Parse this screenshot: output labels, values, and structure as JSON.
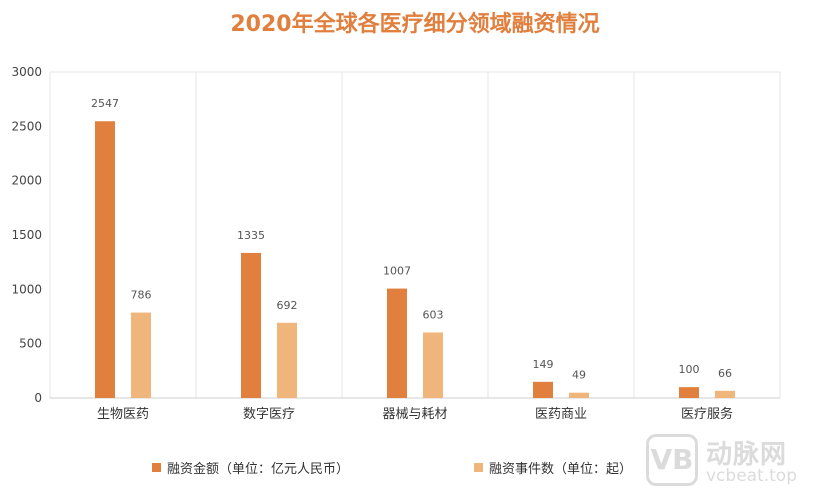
{
  "chart_data": {
    "type": "bar",
    "title": "2020年全球各医疗细分领域融资情况",
    "categories": [
      "生物医药",
      "数字医疗",
      "器械与耗材",
      "医药商业",
      "医疗服务"
    ],
    "series": [
      {
        "name": "融资金额（单位：亿元人民币）",
        "values": [
          2547,
          1335,
          1007,
          149,
          100
        ],
        "color": "#E07F3E"
      },
      {
        "name": "融资事件数（单位：起）",
        "values": [
          786,
          692,
          603,
          49,
          66
        ],
        "color": "#F0B57A"
      }
    ],
    "ylim": [
      0,
      3000
    ],
    "yticks": [
      0,
      500,
      1000,
      1500,
      2000,
      2500,
      3000
    ],
    "grid": "vertical category separators",
    "legend_position": "bottom",
    "title_color": "#E07F3E",
    "xlabel": "",
    "ylabel": ""
  },
  "watermark": {
    "logo": "VB",
    "name": "动脉网",
    "site": "vcbeat.top"
  }
}
